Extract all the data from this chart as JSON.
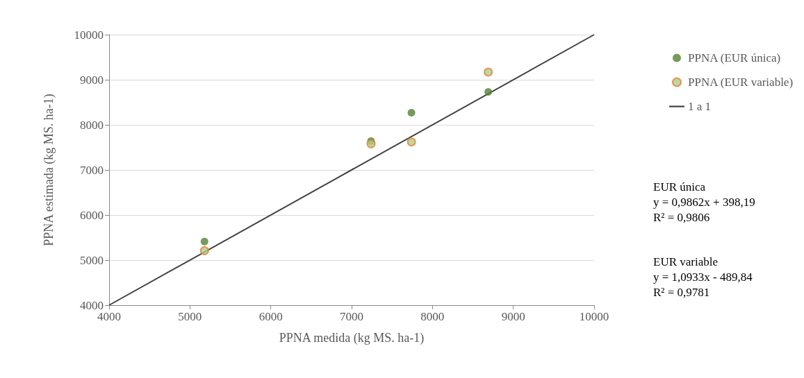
{
  "chart_data": {
    "type": "scatter",
    "xlabel": "PPNA medida (kg MS. ha-1)",
    "ylabel": "PPNA estimada (kg MS. ha-1)",
    "xlim": [
      4000,
      10000
    ],
    "xticks": [
      4000,
      5000,
      6000,
      7000,
      8000,
      9000,
      10000
    ],
    "ylim": [
      4000,
      10000
    ],
    "yticks": [
      4000,
      5000,
      6000,
      7000,
      8000,
      9000,
      10000
    ],
    "grid": "y",
    "legend": "right",
    "marker": "circle",
    "series": [
      {
        "name": "PPNA (EUR única)",
        "color": "#548235",
        "x": [
          5180,
          7240,
          7740,
          8690
        ],
        "values": [
          5410,
          7640,
          8270,
          8730
        ]
      },
      {
        "name": "PPNA (EUR variable)",
        "color": "#a9d18e",
        "x": [
          5180,
          7240,
          7740,
          8690
        ],
        "values": [
          5210,
          7580,
          7620,
          9170
        ]
      },
      {
        "name": "1 a 1",
        "type": "line",
        "color": "#404040",
        "marker": "none",
        "x": [
          4000,
          10000
        ],
        "values": [
          4000,
          10000
        ]
      }
    ],
    "annotations": [
      "EUR única\ny = 0,9862x + 398,19\nR² = 0,9806",
      "EUR variable\ny = 1,0933x - 489,84\nR² = 0,9781"
    ]
  }
}
